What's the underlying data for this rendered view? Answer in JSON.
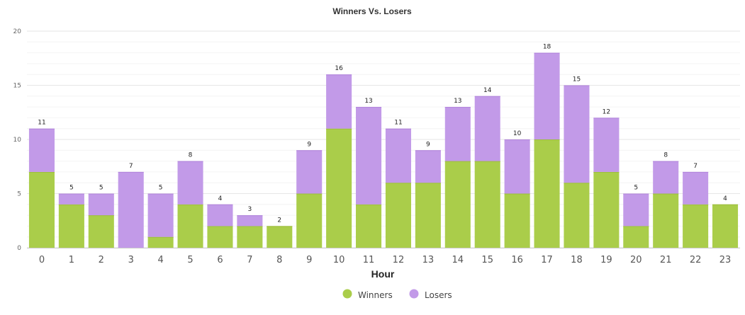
{
  "chart_data": {
    "type": "bar",
    "stacked": true,
    "title": "Winners Vs. Losers",
    "xlabel": "Hour",
    "ylabel": "",
    "ylim": [
      0,
      20
    ],
    "yticks": [
      "0",
      "5",
      "10",
      "15",
      "20"
    ],
    "categories": [
      "0",
      "1",
      "2",
      "3",
      "4",
      "5",
      "6",
      "7",
      "8",
      "9",
      "10",
      "11",
      "12",
      "13",
      "14",
      "15",
      "16",
      "17",
      "18",
      "19",
      "20",
      "21",
      "22",
      "23"
    ],
    "series": [
      {
        "name": "Winners",
        "color": "#aacd4a",
        "values": [
          7,
          4,
          3,
          0,
          1,
          4,
          2,
          2,
          2,
          5,
          11,
          4,
          6,
          6,
          8,
          8,
          5,
          10,
          6,
          7,
          2,
          5,
          4,
          4
        ]
      },
      {
        "name": "Losers",
        "color": "#c29ae8",
        "values": [
          4,
          1,
          2,
          7,
          4,
          4,
          2,
          1,
          0,
          4,
          5,
          9,
          5,
          3,
          5,
          6,
          5,
          8,
          9,
          5,
          3,
          3,
          3,
          0
        ]
      }
    ],
    "totals": [
      "11",
      "5",
      "5",
      "7",
      "5",
      "8",
      "4",
      "3",
      "2",
      "9",
      "16",
      "13",
      "11",
      "9",
      "13",
      "14",
      "10",
      "18",
      "15",
      "12",
      "5",
      "8",
      "7",
      "4"
    ],
    "grid": true,
    "legend_position": "bottom-center"
  }
}
